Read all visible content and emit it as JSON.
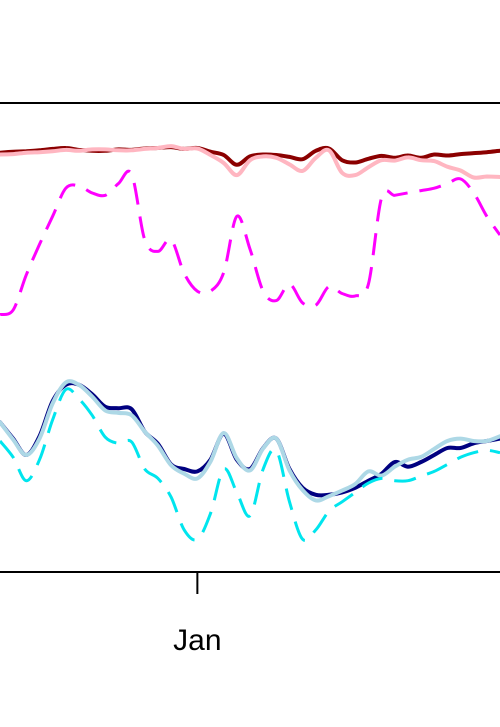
{
  "chart_data": {
    "type": "line",
    "title": "",
    "xlabel": "",
    "ylabel": "",
    "x_ticks": [
      {
        "label": "Jan",
        "x": 0
      }
    ],
    "grid": false,
    "legend": "none",
    "xlim": [
      -7.5,
      11.5
    ],
    "ylim": [
      0,
      100
    ],
    "x": [
      -7.5,
      -7,
      -6.5,
      -6,
      -5.5,
      -5,
      -4.5,
      -4,
      -3.5,
      -3,
      -2.5,
      -2,
      -1.5,
      -1,
      -0.5,
      0,
      0.5,
      1,
      1.5,
      2,
      2.5,
      3,
      3.5,
      4,
      4.5,
      5,
      5.5,
      6,
      6.5,
      7,
      7.5,
      8,
      8.5,
      9,
      9.5,
      10,
      10.5,
      11,
      11.5
    ],
    "series": [
      {
        "color": "#8b0000",
        "dash": "solid",
        "width": 4,
        "values": [
          89.6,
          89.8,
          89.9,
          90.1,
          90.4,
          90.6,
          90.2,
          90.0,
          90.0,
          90.3,
          90.2,
          90.5,
          90.6,
          90.8,
          90.4,
          90.6,
          89.8,
          89.1,
          87.0,
          88.8,
          89.2,
          89.1,
          88.7,
          88.2,
          90.0,
          90.5,
          88.0,
          87.5,
          88.3,
          88.9,
          88.5,
          89.0,
          88.5,
          89.2,
          89.0,
          89.3,
          89.5,
          89.7,
          90.0
        ]
      },
      {
        "color": "#ffb6c1",
        "dash": "solid",
        "width": 4,
        "values": [
          89.2,
          89.3,
          89.6,
          89.7,
          89.9,
          90.2,
          90.0,
          90.3,
          90.3,
          90.1,
          90.1,
          90.4,
          90.6,
          91.0,
          90.4,
          90.5,
          89.1,
          87.4,
          84.8,
          88.0,
          88.8,
          88.5,
          87.1,
          85.7,
          88.5,
          90.1,
          85.3,
          84.8,
          86.5,
          88.0,
          87.9,
          88.6,
          88.0,
          87.8,
          86.6,
          85.8,
          84.3,
          84.5,
          84.4
        ]
      },
      {
        "color": "#ff00ff",
        "dash": "dashed",
        "width": 3,
        "values": [
          55.0,
          56.0,
          63.5,
          70.0,
          76.0,
          82.0,
          82.5,
          81.0,
          80.5,
          83.0,
          85.0,
          71.0,
          68.5,
          71.0,
          63.8,
          60.0,
          60.0,
          64.0,
          76.0,
          69.0,
          60.0,
          58.0,
          61.5,
          57.5,
          57.0,
          61.0,
          59.5,
          59.0,
          61.5,
          80.0,
          80.5,
          81.0,
          81.5,
          82.0,
          83.0,
          84.0,
          81.0,
          76.0,
          72.0
        ]
      },
      {
        "color": "#000080",
        "dash": "solid",
        "width": 4,
        "values": [
          32.0,
          28.5,
          25.0,
          29.0,
          36.5,
          40.0,
          40.0,
          38.0,
          35.3,
          35.0,
          34.8,
          30.0,
          27.4,
          23.0,
          22.0,
          21.5,
          24.0,
          29.5,
          24.0,
          22.0,
          26.5,
          28.5,
          22.0,
          18.0,
          16.5,
          16.5,
          17.0,
          18.0,
          19.5,
          21.0,
          23.5,
          22.5,
          23.5,
          25.0,
          26.5,
          26.5,
          27.5,
          28.0,
          28.5
        ]
      },
      {
        "color": "#add8e6",
        "dash": "solid",
        "width": 4,
        "values": [
          32.0,
          28.3,
          25.0,
          28.5,
          36.0,
          40.5,
          40.0,
          37.5,
          34.5,
          34.0,
          33.5,
          30.0,
          27.0,
          22.8,
          21.0,
          20.0,
          23.6,
          29.7,
          24.3,
          21.7,
          26.4,
          28.5,
          21.7,
          17.5,
          15.3,
          16.2,
          17.4,
          18.8,
          21.5,
          20.6,
          22.5,
          24.0,
          24.6,
          26.3,
          28.0,
          28.5,
          28.0,
          28.0,
          29.0
        ]
      },
      {
        "color": "#00e5ee",
        "dash": "dashed",
        "width": 3,
        "values": [
          28.0,
          24.5,
          19.5,
          24.0,
          32.5,
          39.0,
          37.0,
          33.5,
          28.8,
          27.5,
          27.8,
          22.0,
          20.0,
          16.0,
          9.0,
          7.0,
          12.5,
          22.0,
          17.0,
          12.0,
          22.0,
          26.0,
          15.0,
          7.0,
          9.0,
          13.0,
          15.0,
          17.0,
          19.0,
          20.0,
          19.5,
          19.5,
          20.5,
          21.5,
          23.0,
          24.5,
          25.5,
          26.0,
          25.5
        ]
      }
    ]
  }
}
